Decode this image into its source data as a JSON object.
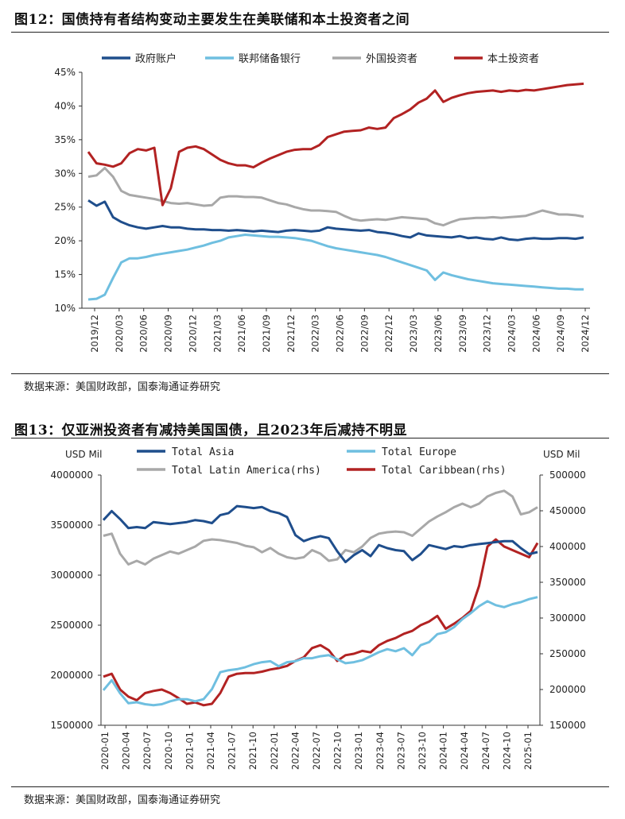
{
  "figure12": {
    "title": "图12：国债持有者结构变动主要发生在美联储和本土投资者之间",
    "source": "数据来源：美国财政部，国泰海通证券研究"
  },
  "figure13": {
    "title": "图13：仅亚洲投资者有减持美国国债，且2023年后减持不明显",
    "source": "数据来源：美国财政部，国泰海通证券研究"
  },
  "colors": {
    "dark_blue": "#1f4e8c",
    "light_blue": "#6fbfe0",
    "gray": "#a8a8a8",
    "red": "#b22222"
  },
  "chart_data": [
    {
      "type": "line",
      "title": "图12：国债持有者结构变动主要发生在美联储和本土投资者之间",
      "ylim": [
        10,
        45
      ],
      "y_ticks": [
        "10%",
        "15%",
        "20%",
        "25%",
        "30%",
        "35%",
        "40%",
        "45%"
      ],
      "x_tick_labels": [
        "2019/12",
        "2020/03",
        "2020/06",
        "2020/09",
        "2020/12",
        "2021/03",
        "2021/06",
        "2021/09",
        "2021/12",
        "2022/03",
        "2022/06",
        "2022/09",
        "2022/12",
        "2023/03",
        "2023/06",
        "2023/09",
        "2023/12",
        "2024/03",
        "2024/06",
        "2024/09",
        "2024/12"
      ],
      "legend_position": "top",
      "grid": false,
      "series": [
        {
          "name": "政府账户",
          "color": "#1f4e8c",
          "values": [
            26,
            25.2,
            25.8,
            23.5,
            22.8,
            22.3,
            22,
            21.8,
            22,
            22.2,
            22,
            22,
            21.8,
            21.7,
            21.7,
            21.6,
            21.6,
            21.5,
            21.6,
            21.5,
            21.4,
            21.5,
            21.4,
            21.3,
            21.5,
            21.6,
            21.5,
            21.4,
            21.5,
            22,
            21.8,
            21.7,
            21.6,
            21.5,
            21.6,
            21.3,
            21.2,
            21,
            20.7,
            20.5,
            21.1,
            20.8,
            20.7,
            20.6,
            20.5,
            20.7,
            20.4,
            20.5,
            20.3,
            20.2,
            20.5,
            20.2,
            20.1,
            20.3,
            20.4,
            20.3,
            20.3,
            20.4,
            20.4,
            20.3,
            20.5
          ]
        },
        {
          "name": "联邦储备银行",
          "color": "#6fbfe0",
          "values": [
            11.3,
            11.4,
            12,
            14.5,
            16.8,
            17.4,
            17.4,
            17.6,
            17.9,
            18.1,
            18.3,
            18.5,
            18.7,
            19,
            19.3,
            19.7,
            20,
            20.5,
            20.7,
            20.9,
            20.8,
            20.7,
            20.6,
            20.6,
            20.5,
            20.4,
            20.2,
            20,
            19.6,
            19.2,
            18.9,
            18.7,
            18.5,
            18.3,
            18.1,
            17.9,
            17.6,
            17.2,
            16.8,
            16.4,
            16,
            15.6,
            14.2,
            15.3,
            14.9,
            14.6,
            14.3,
            14.1,
            13.9,
            13.7,
            13.6,
            13.5,
            13.4,
            13.3,
            13.2,
            13.1,
            13,
            12.9,
            12.9,
            12.8,
            12.8
          ]
        },
        {
          "name": "外国投资者",
          "color": "#a8a8a8",
          "values": [
            29.5,
            29.7,
            30.8,
            29.5,
            27.4,
            26.8,
            26.6,
            26.4,
            26.2,
            25.9,
            25.6,
            25.5,
            25.6,
            25.4,
            25.2,
            25.3,
            26.4,
            26.6,
            26.6,
            26.5,
            26.5,
            26.4,
            26,
            25.6,
            25.4,
            25,
            24.7,
            24.5,
            24.5,
            24.4,
            24.3,
            23.7,
            23.2,
            23,
            23.1,
            23.2,
            23.1,
            23.3,
            23.5,
            23.4,
            23.3,
            23.2,
            22.6,
            22.3,
            22.8,
            23.2,
            23.3,
            23.4,
            23.4,
            23.5,
            23.4,
            23.5,
            23.6,
            23.7,
            24.1,
            24.5,
            24.2,
            23.9,
            23.9,
            23.8,
            23.6
          ]
        },
        {
          "name": "本土投资者",
          "color": "#b22222",
          "values": [
            33.2,
            31.5,
            31.3,
            31,
            31.5,
            33,
            33.6,
            33.4,
            33.8,
            25.3,
            27.8,
            33.2,
            33.8,
            34,
            33.6,
            32.8,
            32,
            31.5,
            31.2,
            31.2,
            30.9,
            31.6,
            32.2,
            32.7,
            33.2,
            33.5,
            33.6,
            33.6,
            34.2,
            35.4,
            35.8,
            36.2,
            36.3,
            36.4,
            36.8,
            36.6,
            36.8,
            38.2,
            38.8,
            39.5,
            40.5,
            41.1,
            42.3,
            40.6,
            41.2,
            41.6,
            41.9,
            42.1,
            42.2,
            42.3,
            42.1,
            42.3,
            42.2,
            42.4,
            42.3,
            42.5,
            42.7,
            42.9,
            43.1,
            43.2,
            43.3
          ]
        }
      ]
    },
    {
      "type": "line",
      "title": "图13：仅亚洲投资者有减持美国国债，且2023年后减持不明显",
      "y_unit_left": "USD Mil",
      "y_unit_right": "USD Mil",
      "ylim_left": [
        1500000,
        4000000
      ],
      "ylim_right": [
        150000,
        500000
      ],
      "y_ticks_left": [
        "1500000",
        "2000000",
        "2500000",
        "3000000",
        "3500000",
        "4000000"
      ],
      "y_ticks_right": [
        "150000",
        "200000",
        "250000",
        "300000",
        "350000",
        "400000",
        "450000",
        "500000"
      ],
      "x_tick_labels": [
        "2020-01",
        "2020-04",
        "2020-07",
        "2020-10",
        "2021-01",
        "2021-04",
        "2021-07",
        "2021-10",
        "2022-01",
        "2022-04",
        "2022-07",
        "2022-10",
        "2023-01",
        "2023-04",
        "2023-07",
        "2023-10",
        "2024-01",
        "2024-04",
        "2024-07",
        "2024-10",
        "2025-01"
      ],
      "legend_position": "top",
      "grid": false,
      "series": [
        {
          "name": "Total Asia",
          "axis": "left",
          "color": "#1f4e8c",
          "values": [
            3550000,
            3640000,
            3560000,
            3470000,
            3480000,
            3470000,
            3530000,
            3520000,
            3510000,
            3520000,
            3530000,
            3550000,
            3540000,
            3520000,
            3600000,
            3620000,
            3690000,
            3680000,
            3670000,
            3680000,
            3640000,
            3620000,
            3580000,
            3400000,
            3340000,
            3370000,
            3390000,
            3370000,
            3240000,
            3130000,
            3200000,
            3250000,
            3190000,
            3300000,
            3270000,
            3250000,
            3240000,
            3150000,
            3210000,
            3300000,
            3280000,
            3260000,
            3290000,
            3280000,
            3300000,
            3310000,
            3320000,
            3330000,
            3340000,
            3340000,
            3270000,
            3210000,
            3230000
          ]
        },
        {
          "name": "Total Europe",
          "axis": "left",
          "color": "#6fbfe0",
          "values": [
            1850000,
            1950000,
            1820000,
            1720000,
            1730000,
            1710000,
            1700000,
            1710000,
            1740000,
            1760000,
            1760000,
            1740000,
            1760000,
            1860000,
            2030000,
            2050000,
            2060000,
            2080000,
            2110000,
            2130000,
            2140000,
            2090000,
            2130000,
            2140000,
            2170000,
            2170000,
            2190000,
            2200000,
            2160000,
            2120000,
            2130000,
            2150000,
            2190000,
            2230000,
            2260000,
            2240000,
            2270000,
            2200000,
            2300000,
            2330000,
            2410000,
            2430000,
            2480000,
            2560000,
            2620000,
            2690000,
            2740000,
            2700000,
            2680000,
            2710000,
            2730000,
            2760000,
            2780000
          ]
        },
        {
          "name": "Total Latin America(rhs)",
          "axis": "right",
          "color": "#a8a8a8",
          "values": [
            415000,
            418000,
            390000,
            375000,
            380000,
            375000,
            383000,
            388000,
            393000,
            390000,
            395000,
            400000,
            408000,
            410000,
            409000,
            407000,
            405000,
            401000,
            399000,
            392000,
            398000,
            390000,
            385000,
            383000,
            385000,
            395000,
            390000,
            380000,
            382000,
            395000,
            392000,
            400000,
            412000,
            418000,
            420000,
            421000,
            420000,
            415000,
            425000,
            435000,
            442000,
            448000,
            455000,
            460000,
            455000,
            460000,
            470000,
            475000,
            478000,
            470000,
            445000,
            448000,
            455000
          ]
        },
        {
          "name": "Total Caribbean(rhs)",
          "axis": "right",
          "color": "#b22222",
          "values": [
            218000,
            222000,
            200000,
            190000,
            185000,
            195000,
            198000,
            200000,
            195000,
            188000,
            180000,
            182000,
            178000,
            180000,
            195000,
            218000,
            222000,
            223000,
            223000,
            225000,
            228000,
            230000,
            233000,
            240000,
            245000,
            258000,
            262000,
            255000,
            240000,
            248000,
            250000,
            254000,
            252000,
            262000,
            268000,
            272000,
            278000,
            282000,
            290000,
            295000,
            303000,
            285000,
            292000,
            300000,
            310000,
            345000,
            400000,
            410000,
            400000,
            395000,
            390000,
            385000,
            405000
          ]
        }
      ]
    }
  ]
}
